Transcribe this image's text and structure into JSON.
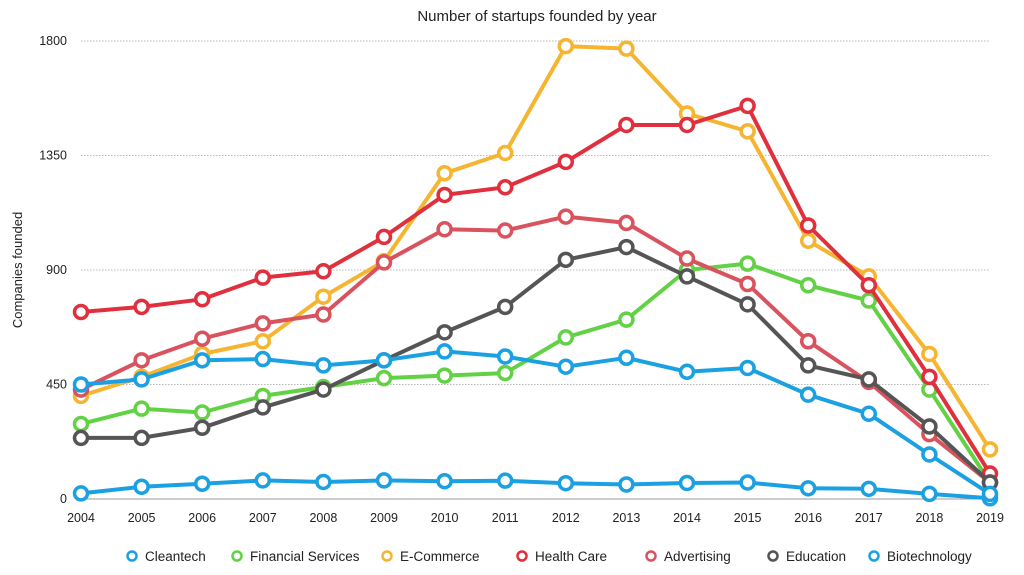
{
  "chart_data": {
    "type": "line",
    "title": "Number of startups founded by year",
    "xlabel": "",
    "ylabel": "Companies founded",
    "ylim": [
      0,
      1800
    ],
    "yticks": [
      0,
      450,
      900,
      1350,
      1800
    ],
    "grid": true,
    "legend_position": "bottom",
    "categories": [
      "2004",
      "2005",
      "2006",
      "2007",
      "2008",
      "2009",
      "2010",
      "2011",
      "2012",
      "2013",
      "2014",
      "2015",
      "2016",
      "2017",
      "2018",
      "2019"
    ],
    "series": [
      {
        "name": "Cleantech",
        "color": "#1ba1e2",
        "values": [
          22,
          48,
          60,
          73,
          67,
          73,
          70,
          72,
          62,
          57,
          63,
          65,
          42,
          40,
          20,
          3
        ]
      },
      {
        "name": "Financial Services",
        "color": "#62d146",
        "values": [
          295,
          355,
          340,
          405,
          440,
          475,
          485,
          495,
          635,
          705,
          900,
          925,
          840,
          780,
          430,
          65
        ]
      },
      {
        "name": "E-Commerce",
        "color": "#f5b531",
        "values": [
          405,
          480,
          570,
          620,
          795,
          935,
          1280,
          1360,
          1780,
          1770,
          1515,
          1445,
          1015,
          875,
          570,
          195
        ]
      },
      {
        "name": "Health Care",
        "color": "#e02f3d",
        "values": [
          735,
          755,
          785,
          870,
          895,
          1030,
          1195,
          1225,
          1325,
          1470,
          1470,
          1545,
          1075,
          840,
          480,
          100
        ]
      },
      {
        "name": "Advertising",
        "color": "#d9535f",
        "values": [
          430,
          545,
          630,
          690,
          725,
          930,
          1060,
          1055,
          1110,
          1085,
          945,
          845,
          620,
          460,
          255,
          65
        ]
      },
      {
        "name": "Education",
        "color": "#555555",
        "values": [
          240,
          240,
          280,
          360,
          430,
          545,
          655,
          755,
          940,
          990,
          875,
          765,
          525,
          470,
          285,
          65
        ]
      },
      {
        "name": "Biotechnology",
        "color": "#1ba1e2",
        "values": [
          450,
          470,
          545,
          550,
          525,
          545,
          580,
          560,
          520,
          555,
          500,
          515,
          410,
          335,
          175,
          20
        ]
      }
    ]
  }
}
